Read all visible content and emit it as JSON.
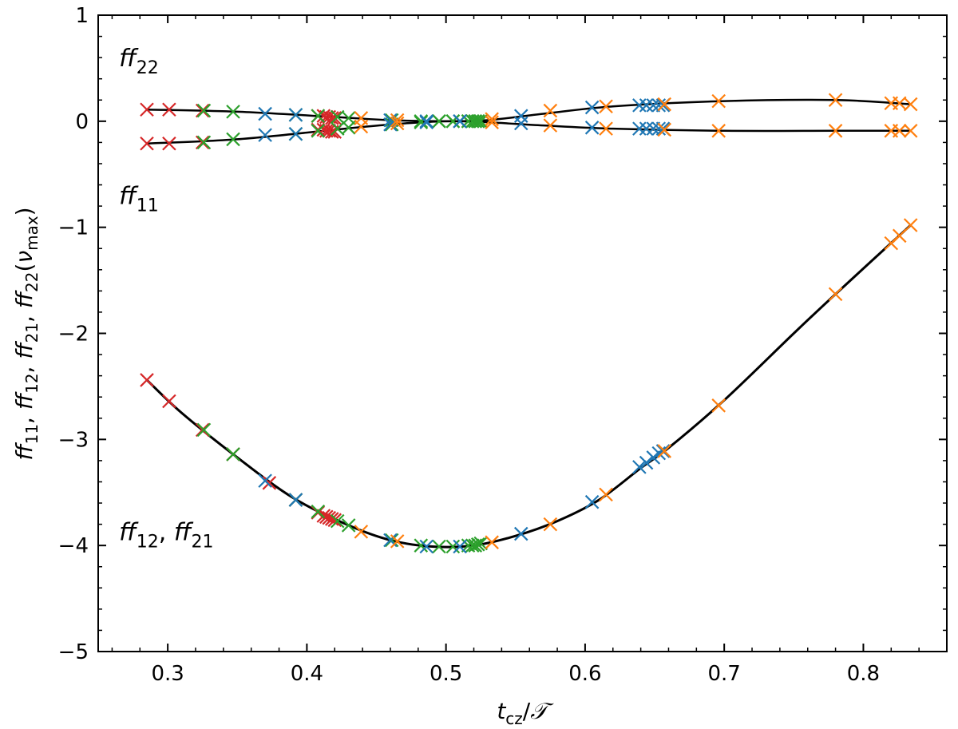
{
  "chart_data": {
    "type": "scatter",
    "xlabel": "t_cz/𝒯",
    "ylabel": "ff11, ff12, ff21, ff22(νmax)",
    "xlim": [
      0.25,
      0.86
    ],
    "ylim": [
      -5,
      1
    ],
    "xticks": [
      "0.3",
      "0.4",
      "0.5",
      "0.6",
      "0.7",
      "0.8"
    ],
    "xtick_values": [
      0.3,
      0.4,
      0.5,
      0.6,
      0.7,
      0.8
    ],
    "yticks": [
      "1",
      "0",
      "−1",
      "−2",
      "−3",
      "−4",
      "−5"
    ],
    "ytick_values": [
      1,
      0,
      -1,
      -2,
      -3,
      -4,
      -5
    ],
    "annotations": [
      {
        "text": "ff22",
        "base": "ff",
        "sub": "22",
        "x": 0.265,
        "y": 0.52
      },
      {
        "text": "ff11",
        "base": "ff",
        "sub": "11",
        "x": 0.265,
        "y": -0.78
      },
      {
        "text": "ff12, ff21",
        "parts": [
          {
            "base": "ff",
            "sub": "12"
          },
          {
            "base": "ff",
            "sub": "21"
          }
        ],
        "x": 0.265,
        "y": -3.95
      }
    ],
    "line_color": "#000000",
    "series": [
      {
        "name": "red",
        "color": "#d62728",
        "ff22": [
          [
            0.285,
            0.11
          ],
          [
            0.301,
            0.11
          ],
          [
            0.325,
            0.1
          ],
          [
            0.408,
            0.05
          ],
          [
            0.412,
            0.05
          ],
          [
            0.414,
            0.04
          ],
          [
            0.416,
            0.04
          ],
          [
            0.418,
            0.03
          ],
          [
            0.42,
            0.03
          ]
        ],
        "ff11": [
          [
            0.285,
            -0.21
          ],
          [
            0.301,
            -0.21
          ],
          [
            0.325,
            -0.2
          ],
          [
            0.408,
            -0.08
          ],
          [
            0.412,
            -0.08
          ],
          [
            0.414,
            -0.09
          ],
          [
            0.416,
            -0.09
          ],
          [
            0.418,
            -0.1
          ],
          [
            0.42,
            -0.1
          ]
        ],
        "ff12": [
          [
            0.285,
            -2.44
          ],
          [
            0.301,
            -2.64
          ],
          [
            0.325,
            -2.91
          ],
          [
            0.347,
            -3.14
          ],
          [
            0.373,
            -3.41
          ],
          [
            0.392,
            -3.57
          ],
          [
            0.408,
            -3.69
          ],
          [
            0.412,
            -3.72
          ],
          [
            0.414,
            -3.73
          ],
          [
            0.416,
            -3.74
          ],
          [
            0.418,
            -3.75
          ],
          [
            0.42,
            -3.76
          ]
        ]
      },
      {
        "name": "green",
        "color": "#2ca02c",
        "ff22": [
          [
            0.326,
            0.1
          ],
          [
            0.347,
            0.09
          ],
          [
            0.392,
            0.06
          ],
          [
            0.408,
            0.05
          ],
          [
            0.422,
            0.04
          ],
          [
            0.43,
            0.03
          ],
          [
            0.461,
            0.01
          ],
          [
            0.482,
            0.0
          ],
          [
            0.495,
            0.0
          ],
          [
            0.505,
            0.0
          ],
          [
            0.516,
            0.0
          ],
          [
            0.519,
            0.0
          ],
          [
            0.521,
            0.0
          ],
          [
            0.523,
            0.0
          ],
          [
            0.525,
            0.0
          ]
        ],
        "ff11": [
          [
            0.326,
            -0.2
          ],
          [
            0.347,
            -0.17
          ],
          [
            0.392,
            -0.12
          ],
          [
            0.408,
            -0.09
          ],
          [
            0.422,
            -0.07
          ],
          [
            0.43,
            -0.06
          ],
          [
            0.461,
            -0.03
          ],
          [
            0.482,
            -0.01
          ],
          [
            0.495,
            0.0
          ],
          [
            0.505,
            0.0
          ],
          [
            0.516,
            0.0
          ],
          [
            0.519,
            0.0
          ],
          [
            0.521,
            0.0
          ],
          [
            0.523,
            0.0
          ],
          [
            0.525,
            0.0
          ]
        ],
        "ff12": [
          [
            0.326,
            -2.91
          ],
          [
            0.347,
            -3.14
          ],
          [
            0.392,
            -3.57
          ],
          [
            0.408,
            -3.68
          ],
          [
            0.422,
            -3.77
          ],
          [
            0.43,
            -3.81
          ],
          [
            0.461,
            -3.95
          ],
          [
            0.482,
            -4.0
          ],
          [
            0.495,
            -4.01
          ],
          [
            0.505,
            -4.01
          ],
          [
            0.516,
            -4.0
          ],
          [
            0.519,
            -4.0
          ],
          [
            0.521,
            -4.0
          ],
          [
            0.523,
            -3.99
          ],
          [
            0.525,
            -3.98
          ]
        ]
      },
      {
        "name": "blue",
        "color": "#1f77b4",
        "ff22": [
          [
            0.37,
            0.07
          ],
          [
            0.392,
            0.06
          ],
          [
            0.46,
            0.01
          ],
          [
            0.486,
            0.0
          ],
          [
            0.51,
            0.0
          ],
          [
            0.554,
            0.05
          ],
          [
            0.605,
            0.13
          ],
          [
            0.639,
            0.15
          ],
          [
            0.644,
            0.15
          ],
          [
            0.649,
            0.15
          ],
          [
            0.653,
            0.15
          ],
          [
            0.656,
            0.15
          ]
        ],
        "ff11": [
          [
            0.37,
            -0.13
          ],
          [
            0.392,
            -0.12
          ],
          [
            0.46,
            -0.03
          ],
          [
            0.486,
            -0.01
          ],
          [
            0.51,
            0.0
          ],
          [
            0.554,
            -0.02
          ],
          [
            0.605,
            -0.06
          ],
          [
            0.639,
            -0.07
          ],
          [
            0.644,
            -0.07
          ],
          [
            0.649,
            -0.07
          ],
          [
            0.653,
            -0.07
          ],
          [
            0.656,
            -0.07
          ]
        ],
        "ff12": [
          [
            0.37,
            -3.39
          ],
          [
            0.392,
            -3.57
          ],
          [
            0.46,
            -3.95
          ],
          [
            0.486,
            -4.01
          ],
          [
            0.51,
            -4.01
          ],
          [
            0.554,
            -3.89
          ],
          [
            0.605,
            -3.59
          ],
          [
            0.639,
            -3.26
          ],
          [
            0.644,
            -3.22
          ],
          [
            0.649,
            -3.17
          ],
          [
            0.653,
            -3.13
          ],
          [
            0.656,
            -3.11
          ]
        ]
      },
      {
        "name": "orange",
        "color": "#ff7f0e",
        "ff22": [
          [
            0.439,
            0.03
          ],
          [
            0.465,
            0.01
          ],
          [
            0.533,
            0.02
          ],
          [
            0.575,
            0.1
          ],
          [
            0.615,
            0.14
          ],
          [
            0.657,
            0.16
          ],
          [
            0.696,
            0.19
          ],
          [
            0.78,
            0.2
          ],
          [
            0.82,
            0.17
          ],
          [
            0.826,
            0.17
          ],
          [
            0.834,
            0.16
          ]
        ],
        "ff11": [
          [
            0.439,
            -0.05
          ],
          [
            0.465,
            -0.02
          ],
          [
            0.533,
            -0.01
          ],
          [
            0.575,
            -0.04
          ],
          [
            0.615,
            -0.07
          ],
          [
            0.657,
            -0.08
          ],
          [
            0.696,
            -0.09
          ],
          [
            0.78,
            -0.09
          ],
          [
            0.82,
            -0.09
          ],
          [
            0.826,
            -0.09
          ],
          [
            0.834,
            -0.09
          ]
        ],
        "ff12": [
          [
            0.439,
            -3.87
          ],
          [
            0.465,
            -3.96
          ],
          [
            0.533,
            -3.97
          ],
          [
            0.575,
            -3.8
          ],
          [
            0.615,
            -3.52
          ],
          [
            0.657,
            -3.11
          ],
          [
            0.696,
            -2.68
          ],
          [
            0.78,
            -1.63
          ],
          [
            0.82,
            -1.15
          ],
          [
            0.826,
            -1.08
          ],
          [
            0.834,
            -0.98
          ]
        ]
      }
    ],
    "curves": {
      "ff22": [
        [
          0.285,
          0.11
        ],
        [
          0.35,
          0.09
        ],
        [
          0.42,
          0.04
        ],
        [
          0.46,
          0.01
        ],
        [
          0.5,
          0.0
        ],
        [
          0.53,
          0.01
        ],
        [
          0.57,
          0.07
        ],
        [
          0.62,
          0.14
        ],
        [
          0.7,
          0.19
        ],
        [
          0.78,
          0.2
        ],
        [
          0.834,
          0.16
        ]
      ],
      "ff11": [
        [
          0.285,
          -0.21
        ],
        [
          0.35,
          -0.17
        ],
        [
          0.42,
          -0.08
        ],
        [
          0.46,
          -0.03
        ],
        [
          0.5,
          0.0
        ],
        [
          0.53,
          -0.01
        ],
        [
          0.57,
          -0.04
        ],
        [
          0.62,
          -0.07
        ],
        [
          0.7,
          -0.09
        ],
        [
          0.78,
          -0.09
        ],
        [
          0.834,
          -0.09
        ]
      ],
      "ff12": [
        [
          0.285,
          -2.44
        ],
        [
          0.31,
          -2.75
        ],
        [
          0.35,
          -3.17
        ],
        [
          0.39,
          -3.55
        ],
        [
          0.43,
          -3.81
        ],
        [
          0.46,
          -3.95
        ],
        [
          0.49,
          -4.01
        ],
        [
          0.52,
          -4.0
        ],
        [
          0.55,
          -3.91
        ],
        [
          0.58,
          -3.77
        ],
        [
          0.61,
          -3.57
        ],
        [
          0.64,
          -3.27
        ],
        [
          0.66,
          -3.08
        ],
        [
          0.7,
          -2.63
        ],
        [
          0.75,
          -2.0
        ],
        [
          0.78,
          -1.63
        ],
        [
          0.834,
          -0.98
        ]
      ]
    }
  }
}
